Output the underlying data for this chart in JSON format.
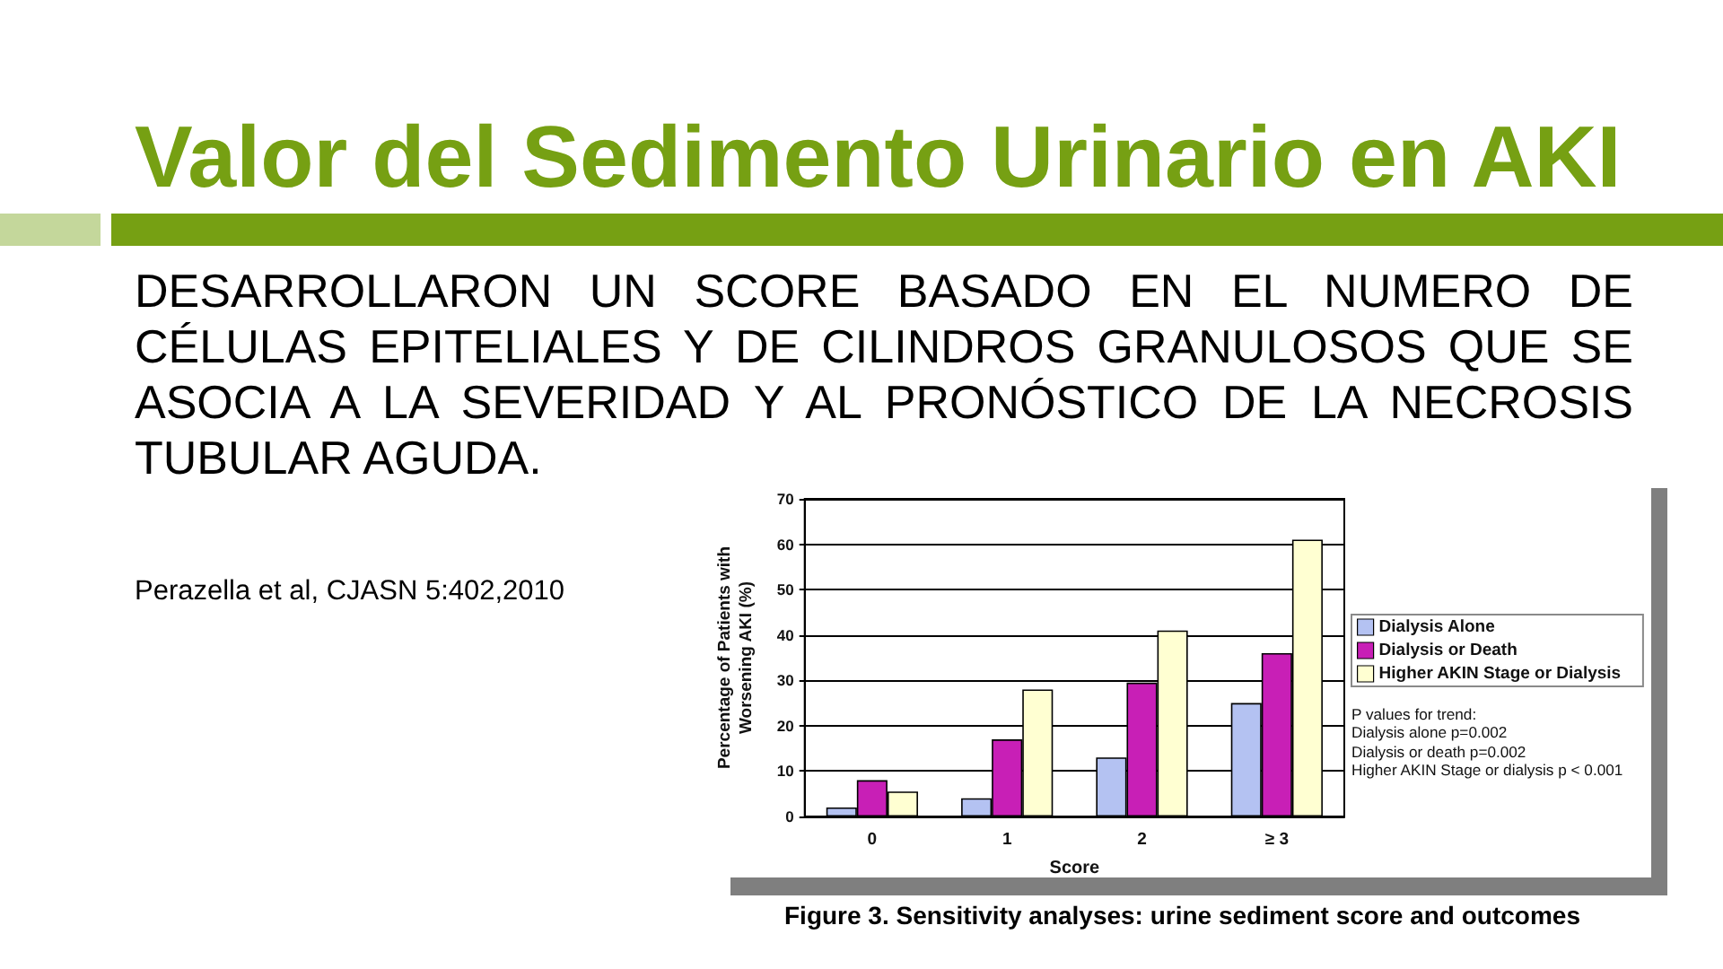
{
  "chart_data": {
    "type": "bar",
    "title": "Valor del Sedimento Urinario en AKI",
    "subtitle": "DESARROLLARON UN SCORE BASADO EN EL NUMERO DE CÉLULAS EPITELIALES Y DE CILINDROS GRANULOSOS QUE SE ASOCIA A LA SEVERIDAD Y AL PRONÓSTICO DE LA NECROSIS TUBULAR AGUDA.",
    "xlabel": "Score",
    "ylabel": "Percentage of Patients with\nWorsening AKI (%)",
    "annotations": [
      "Perazella et al, CJASN 5:402,2010",
      "P values for trend:\nDialysis alone p=0.002\nDialysis or death p=0.002\nHigher AKIN Stage or dialysis p < 0.001",
      "Figure 3. Sensitivity analyses: urine sediment score and outcomes"
    ],
    "categories": [
      "0",
      "1",
      "2",
      "≥ 3"
    ],
    "series": [
      {
        "name": "Dialysis Alone",
        "color": "#b4c2f2",
        "values": [
          2,
          4,
          13,
          25
        ]
      },
      {
        "name": "Dialysis or Death",
        "color": "#c81fb6",
        "values": [
          8,
          17,
          29.5,
          36
        ]
      },
      {
        "name": "Higher AKIN Stage or Dialysis",
        "color": "#ffffd2",
        "values": [
          5.5,
          28,
          41,
          61
        ]
      }
    ],
    "ylim": [
      0,
      70
    ],
    "yticks": [
      0,
      10,
      20,
      30,
      40,
      50,
      60,
      70
    ],
    "grid": "y",
    "legend": "right"
  }
}
